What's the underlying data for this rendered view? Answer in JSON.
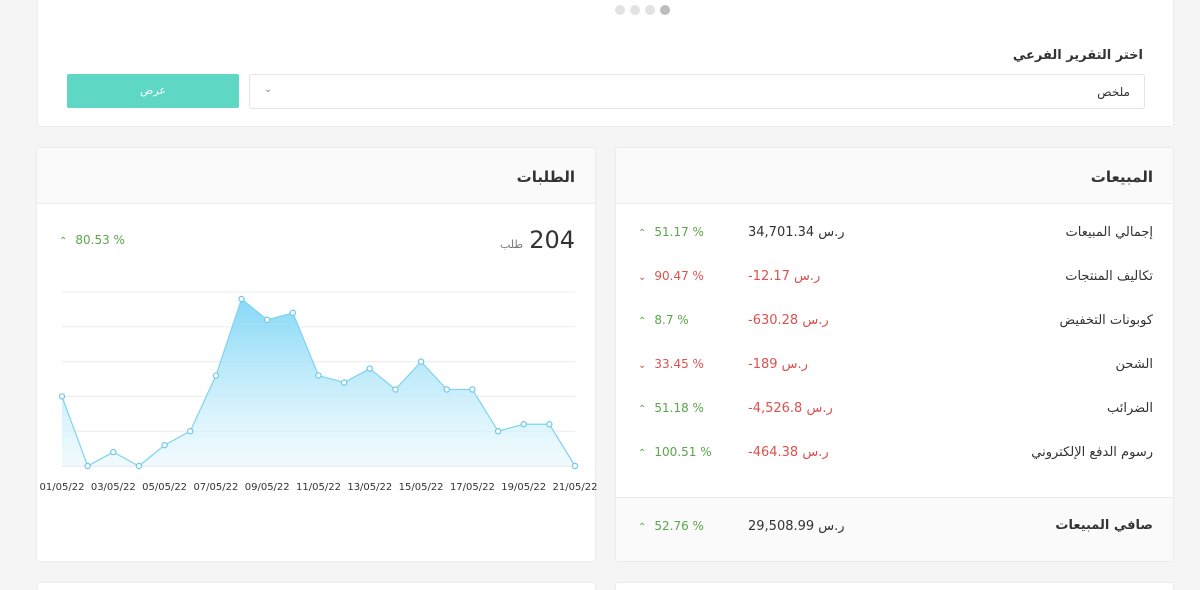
{
  "top": {
    "sub_report_label": "اختر التقرير الفرعي",
    "select_value": "ملخص",
    "show_button": "عرض"
  },
  "sales": {
    "title": "المبيعات",
    "rows": [
      {
        "label": "إجمالي المبيعات",
        "value": "34,701.34 ر.س",
        "change": "51.17 %",
        "trend": "up",
        "value_color": "neutral"
      },
      {
        "label": "تكاليف المنتجات",
        "value": "-12.17 ر.س",
        "change": "90.47 %",
        "trend": "down",
        "value_color": "down"
      },
      {
        "label": "كوبونات التخفيض",
        "value": "-630.28 ر.س",
        "change": "8.7 %",
        "trend": "up",
        "value_color": "down"
      },
      {
        "label": "الشحن",
        "value": "-189 ر.س",
        "change": "33.45 %",
        "trend": "down",
        "value_color": "down"
      },
      {
        "label": "الضرائب",
        "value": "-4,526.8 ر.س",
        "change": "51.18 %",
        "trend": "up",
        "value_color": "down"
      },
      {
        "label": "رسوم الدفع الإلكتروني",
        "value": "-464.38 ر.س",
        "change": "100.51 %",
        "trend": "up",
        "value_color": "down"
      }
    ],
    "net": {
      "label": "صافي المبيعات",
      "value": "29,508.99 ر.س",
      "change": "52.76 %",
      "trend": "up"
    }
  },
  "orders": {
    "title": "الطلبات",
    "count": "204",
    "unit": "طلب",
    "change": "80.53 %",
    "trend": "up"
  },
  "colors": {
    "accent": "#5ed7c4",
    "up": "#5aa64a",
    "down": "#d9534f",
    "chart_line": "#7fd3ee",
    "chart_fill_top": "#86d8f7"
  },
  "chart_data": {
    "type": "area",
    "x": [
      "01/05/22",
      "02/05/22",
      "03/05/22",
      "04/05/22",
      "05/05/22",
      "06/05/22",
      "07/05/22",
      "08/05/22",
      "09/05/22",
      "10/05/22",
      "11/05/22",
      "12/05/22",
      "13/05/22",
      "14/05/22",
      "15/05/22",
      "16/05/22",
      "17/05/22",
      "18/05/22",
      "19/05/22",
      "20/05/22",
      "21/05/22"
    ],
    "tick_labels": [
      "01/05/22",
      "03/05/22",
      "05/05/22",
      "07/05/22",
      "09/05/22",
      "11/05/22",
      "13/05/22",
      "15/05/22",
      "17/05/22",
      "19/05/22",
      "21/05/22"
    ],
    "values": [
      10,
      0,
      2,
      0,
      3,
      5,
      13,
      24,
      21,
      22,
      13,
      12,
      14,
      11,
      15,
      11,
      11,
      5,
      6,
      6,
      0
    ],
    "ylim": [
      0,
      25
    ],
    "grid": true
  }
}
